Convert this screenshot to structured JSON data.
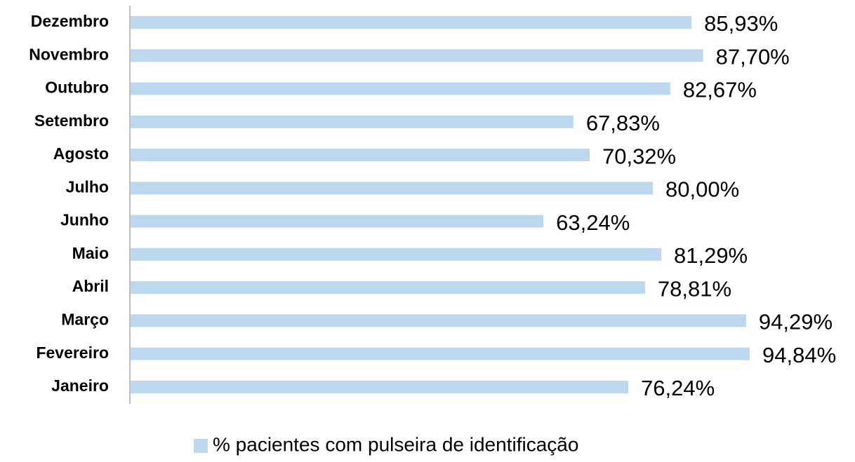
{
  "chart_data": {
    "type": "bar",
    "orientation": "horizontal",
    "categories": [
      "Janeiro",
      "Fevereiro",
      "Março",
      "Abril",
      "Maio",
      "Junho",
      "Julho",
      "Agosto",
      "Setembro",
      "Outubro",
      "Novembro",
      "Dezembro"
    ],
    "series": [
      {
        "name": "% pacientes com pulseira de identificação",
        "color": "#bdd7ee",
        "values": [
          76.24,
          94.84,
          94.29,
          78.81,
          81.29,
          63.24,
          80.0,
          70.32,
          67.83,
          82.67,
          87.7,
          85.93
        ],
        "value_labels": [
          "76,24%",
          "94,84%",
          "94,29%",
          "78,81%",
          "81,29%",
          "63,24%",
          "80,00%",
          "70,32%",
          "67,83%",
          "82,67%",
          "87,70%",
          "85,93%"
        ]
      }
    ],
    "legend": "bottom"
  }
}
